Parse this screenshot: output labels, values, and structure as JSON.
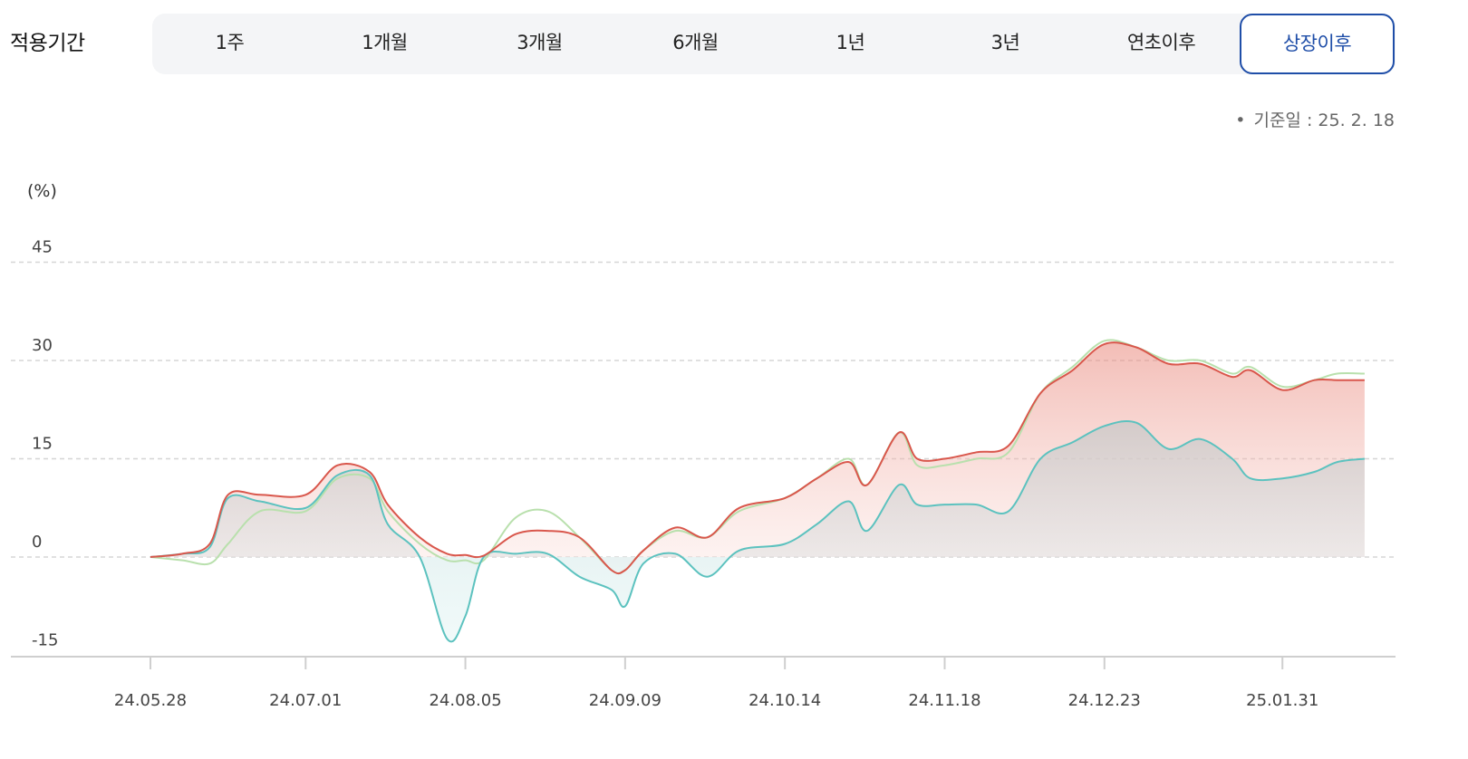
{
  "period": {
    "label": "적용기간",
    "tabs": [
      "1주",
      "1개월",
      "3개월",
      "6개월",
      "1년",
      "3년",
      "연초이후",
      "상장이후"
    ],
    "active": "상장이후"
  },
  "base_date": {
    "bullet": "•",
    "text": "기준일 : 25. 2. 18"
  },
  "colors": {
    "fund": "#d9574c",
    "benchmark": "#b9e0ad",
    "index": "#5cc2bf",
    "active_tab": "#1f4ea8"
  },
  "chart_data": {
    "type": "area",
    "ylabel": "(%)",
    "ylim": [
      -15,
      45
    ],
    "yticks": [
      45,
      30,
      15,
      0,
      -15
    ],
    "grid_lines": [
      45,
      30,
      15,
      0
    ],
    "x": [
      "24.05.28",
      "24.06.04",
      "24.06.10",
      "24.06.14",
      "24.06.21",
      "24.07.01",
      "24.07.08",
      "24.07.15",
      "24.07.19",
      "24.07.26",
      "24.08.01",
      "24.08.05",
      "24.08.09",
      "24.08.16",
      "24.08.23",
      "24.08.30",
      "24.09.06",
      "24.09.09",
      "24.09.13",
      "24.09.20",
      "24.09.27",
      "24.10.04",
      "24.10.14",
      "24.10.21",
      "24.10.28",
      "24.11.01",
      "24.11.08",
      "24.11.12",
      "24.11.18",
      "24.11.25",
      "24.12.02",
      "24.12.09",
      "24.12.16",
      "24.12.23",
      "24.12.30",
      "25.01.06",
      "25.01.13",
      "25.01.20",
      "25.01.24",
      "25.01.31",
      "25.02.07",
      "25.02.12",
      "25.02.18"
    ],
    "xticks": [
      "24.05.28",
      "24.07.01",
      "24.08.05",
      "24.09.09",
      "24.10.14",
      "24.11.18",
      "24.12.23",
      "25.01.31"
    ],
    "series": [
      {
        "key": "benchmark",
        "values": [
          0,
          -0.5,
          -1,
          2,
          7,
          7,
          12,
          12,
          7,
          2,
          -0.5,
          -0.5,
          -0.5,
          6,
          7,
          3,
          -2,
          -2,
          1,
          4,
          3,
          7,
          9,
          12,
          15,
          11,
          19,
          14,
          14,
          15,
          16,
          25,
          29,
          33,
          32,
          30,
          30,
          28,
          29,
          26,
          27,
          28,
          28
        ]
      },
      {
        "key": "fund",
        "values": [
          0,
          0.5,
          2,
          9.5,
          9.5,
          9.5,
          14,
          13,
          8,
          3,
          0.5,
          0.3,
          0.2,
          3.5,
          4,
          3,
          -2,
          -2,
          1,
          4.5,
          3,
          7.5,
          9,
          12,
          14.5,
          11,
          19,
          15,
          15,
          16,
          17,
          25,
          28.5,
          32.5,
          32,
          29.5,
          29.5,
          27.5,
          28.5,
          25.5,
          27,
          27,
          27
        ]
      },
      {
        "key": "index",
        "values": [
          0,
          0.5,
          1.5,
          9,
          8.5,
          7.5,
          12.5,
          12.5,
          5,
          0,
          -12.5,
          -9,
          0,
          0.5,
          0.5,
          -3,
          -5,
          -7.5,
          -1,
          0.5,
          -3,
          1,
          2,
          5,
          8.5,
          4,
          11,
          8,
          8,
          8,
          7,
          15,
          17.5,
          20,
          20.5,
          16.5,
          18,
          15,
          12,
          12,
          13,
          14.5,
          15
        ]
      }
    ]
  }
}
